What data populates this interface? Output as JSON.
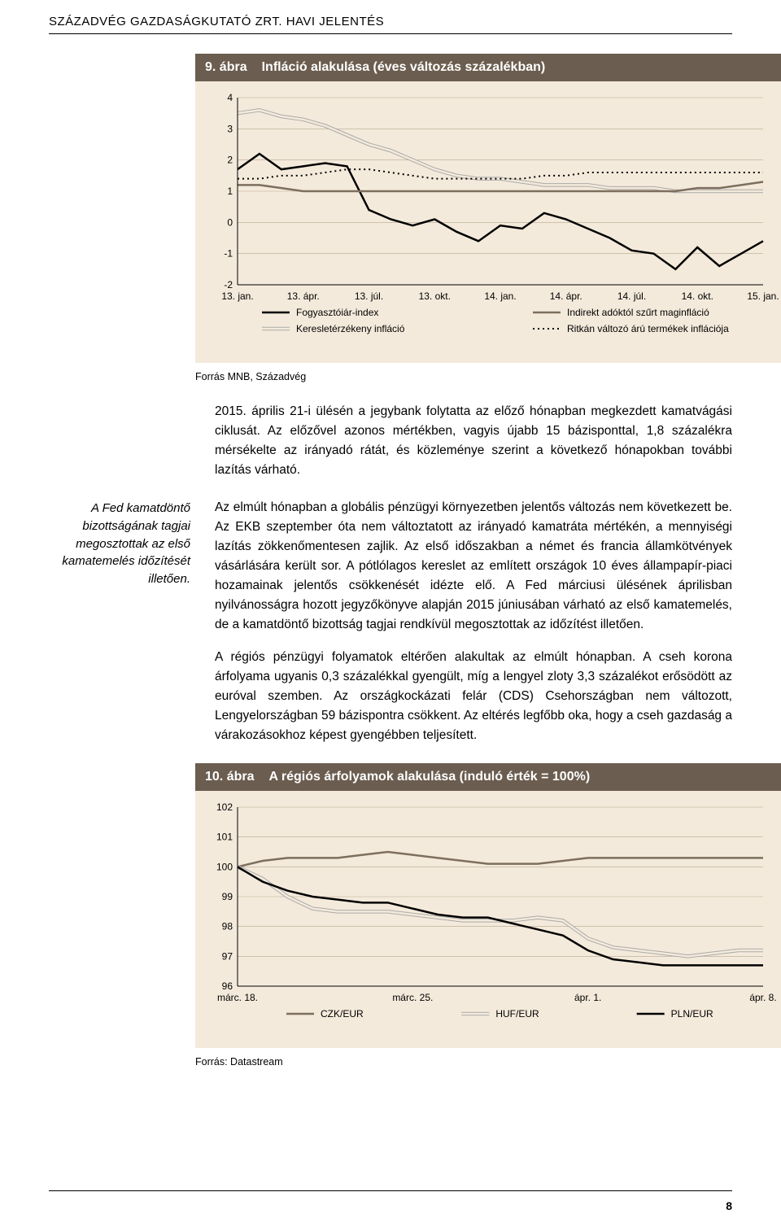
{
  "header": {
    "title": "SZÁZADVÉG GAZDASÁGKUTATÓ ZRT. HAVI JELENTÉS"
  },
  "page_number": "8",
  "figure9": {
    "title_num": "9. ábra",
    "title_text": "Infláció alakulása (éves változás százalékban)",
    "source": "Forrás MNB, Századvég",
    "chart": {
      "type": "line",
      "background_color": "#f4eadb",
      "plot_bg": "#f4eadb",
      "axis_color": "#000000",
      "grid_color": "#b8a88f",
      "label_color": "#000000",
      "label_fontsize": 12,
      "ylim": [
        -2,
        4
      ],
      "yticks": [
        -2,
        -1,
        0,
        1,
        2,
        3,
        4
      ],
      "xticks": [
        "13. jan.",
        "13. ápr.",
        "13. júl.",
        "13. okt.",
        "14. jan.",
        "14. ápr.",
        "14. júl.",
        "14. okt.",
        "15. jan."
      ],
      "legend": [
        {
          "label": "Fogyasztóiár-index",
          "color": "#000000",
          "dash": "solid",
          "width": 2.5
        },
        {
          "label": "Keresletérzékeny infláció",
          "color": "#f4eadb",
          "dash": "solid",
          "width": 2.5,
          "stroke_outline": "#aaa"
        },
        {
          "label": "Indirekt adóktól szűrt maginfláció",
          "color": "#7d6f5e",
          "dash": "solid",
          "width": 2.5
        },
        {
          "label": "Ritkán változó árú termékek inflációja",
          "color": "#000000",
          "dash": "dot",
          "width": 2
        }
      ],
      "series": {
        "fogyasztoiar": [
          1.7,
          2.2,
          1.7,
          1.8,
          1.9,
          1.8,
          0.4,
          0.1,
          -0.1,
          0.1,
          -0.3,
          -0.6,
          -0.1,
          -0.2,
          0.3,
          0.1,
          -0.2,
          -0.5,
          -0.9,
          -1.0,
          -1.5,
          -0.8,
          -1.4,
          -1.0,
          -0.6
        ],
        "kereslet": [
          3.5,
          3.6,
          3.4,
          3.3,
          3.1,
          2.8,
          2.5,
          2.3,
          2.0,
          1.7,
          1.5,
          1.4,
          1.4,
          1.3,
          1.2,
          1.2,
          1.2,
          1.1,
          1.1,
          1.1,
          1.0,
          1.0,
          1.0,
          1.0,
          1.0
        ],
        "maginf": [
          1.2,
          1.2,
          1.1,
          1.0,
          1.0,
          1.0,
          1.0,
          1.0,
          1.0,
          1.0,
          1.0,
          1.0,
          1.0,
          1.0,
          1.0,
          1.0,
          1.0,
          1.0,
          1.0,
          1.0,
          1.0,
          1.1,
          1.1,
          1.2,
          1.3
        ],
        "ritkan": [
          1.4,
          1.4,
          1.5,
          1.5,
          1.6,
          1.7,
          1.7,
          1.6,
          1.5,
          1.4,
          1.4,
          1.4,
          1.4,
          1.4,
          1.5,
          1.5,
          1.6,
          1.6,
          1.6,
          1.6,
          1.6,
          1.6,
          1.6,
          1.6,
          1.6
        ]
      }
    }
  },
  "body": {
    "sidebar_note": "A Fed kamatdöntő bizottságának tagjai megosztottak az első kamatemelés időzítését illetően.",
    "p1": "2015. április 21-i ülésén a jegybank folytatta az előző hónapban megkezdett kamatvágási ciklusát. Az előzővel azonos mértékben, vagyis újabb 15 bázisponttal, 1,8 százalékra mérsékelte az irányadó rátát, és közleménye szerint a következő hónapokban további lazítás várható.",
    "p2": "Az elmúlt hónapban a globális pénzügyi környezetben jelentős változás nem következett be. Az EKB szeptember óta nem változtatott az irányadó kamatráta mértékén, a mennyiségi lazítás zökkenőmentesen zajlik. Az első időszakban a német és francia államkötvények vásárlására került sor. A pótlólagos kereslet az említett országok 10 éves állampapír-piaci hozamainak jelentős csökkenését idézte elő. A Fed márciusi ülésének áprilisban nyilvánosságra hozott jegyzőkönyve alapján 2015 júniusában várható az első kamatemelés, de a kamatdöntő bizottság tagjai rendkívül megosztottak az időzítést illetően.",
    "p3": "A régiós pénzügyi folyamatok eltérően alakultak az elmúlt hónapban. A cseh korona árfolyama ugyanis 0,3 százalékkal gyengült, míg a lengyel zloty 3,3 százalékot erősödött az euróval szemben. Az országkockázati felár (CDS) Csehországban nem változott, Lengyelországban 59 bázispontra csökkent. Az eltérés legfőbb oka, hogy a cseh gazdaság a várakozásokhoz képest gyengébben teljesített."
  },
  "figure10": {
    "title_num": "10. ábra",
    "title_text": "A régiós árfolyamok alakulása (induló érték = 100%)",
    "source": "Forrás: Datastream",
    "chart": {
      "type": "line",
      "background_color": "#f4eadb",
      "plot_bg": "#f4eadb",
      "axis_color": "#000000",
      "grid_color": "#b8a88f",
      "label_color": "#000000",
      "label_fontsize": 12,
      "ylim": [
        96,
        102
      ],
      "yticks": [
        96,
        97,
        98,
        99,
        100,
        101,
        102
      ],
      "xticks": [
        "márc. 18.",
        "márc. 25.",
        "ápr. 1.",
        "ápr. 8."
      ],
      "legend": [
        {
          "label": "CZK/EUR",
          "color": "#7d6f5e",
          "width": 2.5
        },
        {
          "label": "HUF/EUR",
          "color": "#f4eadb",
          "width": 2.5,
          "stroke_outline": "#aaa"
        },
        {
          "label": "PLN/EUR",
          "color": "#000000",
          "width": 2.5
        }
      ],
      "series": {
        "czk": [
          100.0,
          100.2,
          100.3,
          100.3,
          100.3,
          100.4,
          100.5,
          100.4,
          100.3,
          100.2,
          100.1,
          100.1,
          100.1,
          100.2,
          100.3,
          100.3,
          100.3,
          100.3,
          100.3,
          100.3,
          100.3,
          100.3
        ],
        "huf": [
          100.0,
          99.6,
          99.0,
          98.6,
          98.5,
          98.5,
          98.5,
          98.4,
          98.3,
          98.2,
          98.2,
          98.2,
          98.3,
          98.2,
          97.6,
          97.3,
          97.2,
          97.1,
          97.0,
          97.1,
          97.2,
          97.2
        ],
        "pln": [
          100.0,
          99.5,
          99.2,
          99.0,
          98.9,
          98.8,
          98.8,
          98.6,
          98.4,
          98.3,
          98.3,
          98.1,
          97.9,
          97.7,
          97.2,
          96.9,
          96.8,
          96.7,
          96.7,
          96.7,
          96.7,
          96.7
        ]
      }
    }
  }
}
